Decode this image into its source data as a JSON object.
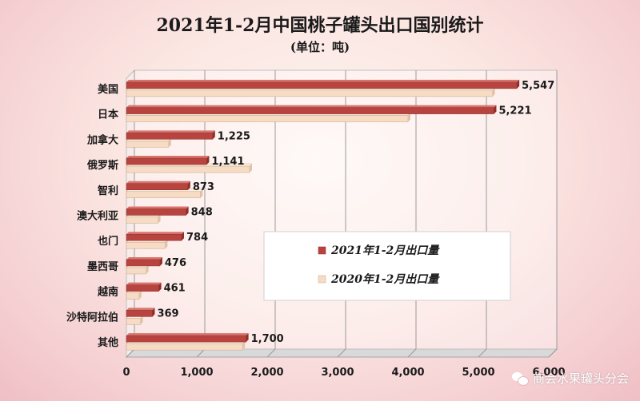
{
  "chart_data": {
    "type": "bar",
    "orientation": "horizontal",
    "title": "2021年1-2月中国桃子罐头出口国别统计",
    "subtitle": "(单位：吨)",
    "categories": [
      "美国",
      "日本",
      "加拿大",
      "俄罗斯",
      "智利",
      "澳大利亚",
      "也门",
      "墨西哥",
      "越南",
      "沙特阿拉伯",
      "其他"
    ],
    "series": [
      {
        "name": "2021年1-2月出口量",
        "values": [
          5547,
          5221,
          1225,
          1141,
          873,
          848,
          784,
          476,
          461,
          369,
          1700
        ],
        "color": "#b8443f"
      },
      {
        "name": "2020年1-2月出口量",
        "values": [
          5200,
          4000,
          600,
          1750,
          1050,
          450,
          550,
          280,
          180,
          200,
          1650
        ],
        "color": "#f6dcc4"
      }
    ],
    "data_labels": [
      "5,547",
      "5,221",
      "1,225",
      "1,141",
      "873",
      "848",
      "784",
      "476",
      "461",
      "369",
      "1,700"
    ],
    "xlim": [
      0,
      6000
    ],
    "x_ticks": [
      0,
      1000,
      2000,
      3000,
      4000,
      5000,
      6000
    ],
    "x_tick_labels": [
      "0",
      "1,000",
      "2,000",
      "3,000",
      "4,000",
      "5,000",
      "6,000"
    ],
    "grid": true,
    "legend_position": "lower-right"
  },
  "watermark": {
    "text": "商会水果罐头分会",
    "icon": "wechat-icon"
  }
}
